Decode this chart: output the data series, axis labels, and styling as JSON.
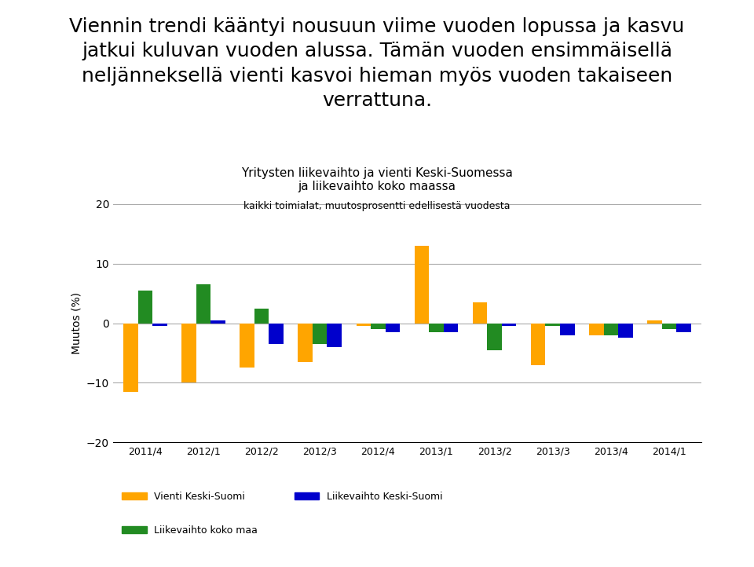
{
  "title_line1": "Yritysten liikevaihto ja vienti Keski-Suomessa",
  "title_line2": "ja liikevaihto koko maassa",
  "title_line3": "kaikki toimialat, muutosprosentti edellisestä vuodesta",
  "ylabel": "Muutos (%)",
  "categories": [
    "2011/4",
    "2012/1",
    "2012/2",
    "2012/3",
    "2012/4",
    "2013/1",
    "2013/2",
    "2013/3",
    "2013/4",
    "2014/1"
  ],
  "vienti_keski_suomi": [
    -11.5,
    -10.0,
    -7.5,
    -6.5,
    -0.5,
    13.0,
    3.5,
    -7.0,
    -2.0,
    0.5
  ],
  "liikevaihto_koko_maa": [
    5.5,
    6.5,
    2.5,
    -3.5,
    -1.0,
    -1.5,
    -4.5,
    -0.5,
    -2.0,
    -1.0
  ],
  "liikevaihto_keski_suomi": [
    -0.5,
    0.5,
    -3.5,
    -4.0,
    -1.5,
    -1.5,
    -0.5,
    -2.0,
    -2.5,
    -1.5
  ],
  "color_vienti": "#FFA500",
  "color_koko_maa": "#228B22",
  "color_keski_suomi": "#0000CC",
  "ylim": [
    -20,
    20
  ],
  "yticks": [
    -20,
    -10,
    0,
    10,
    20
  ],
  "bar_width": 0.25,
  "heading_text": "Viennin trendi kääntyi nousuun viime vuoden lopussa ja kasvu\njatkui kuluvan vuoden alussa. Tämän vuoden ensimmäisellä\nneljänneksellä vienti kasvoi hieman myös vuoden takaiseen\nverrattuna.",
  "legend_vienti": "Vienti Keski-Suomi",
  "legend_koko_maa": "Liikevaihto koko maa",
  "legend_keski_suomi": "Liikevaihto Keski-Suomi",
  "heading_fontsize": 18,
  "title_fontsize": 11,
  "subtitle_fontsize": 9
}
